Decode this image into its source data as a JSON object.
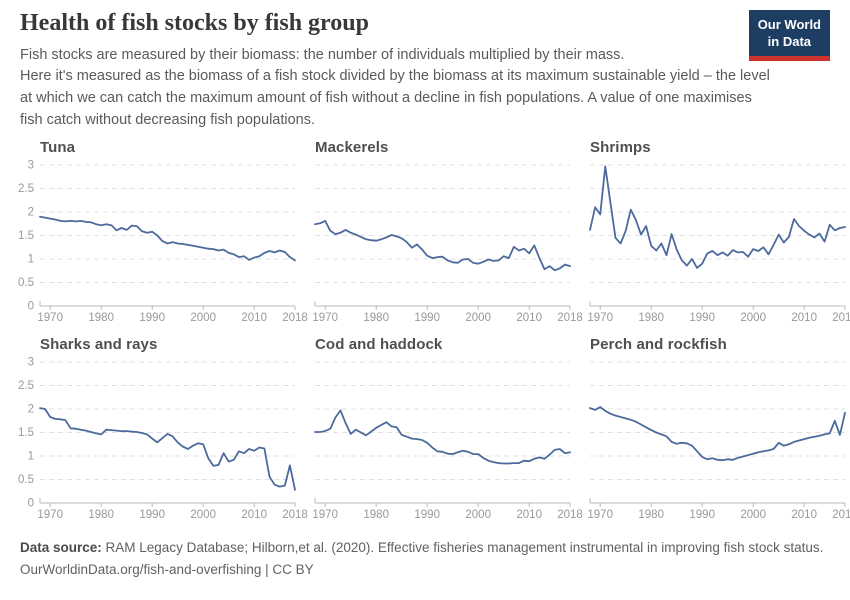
{
  "header": {
    "title": "Health of fish stocks by fish group",
    "logo": {
      "line1": "Our World",
      "line2": "in Data"
    }
  },
  "subtitle": {
    "p1": "Fish stocks are measured by their biomass: the number of individuals multiplied by their mass.",
    "p2": "Here it's measured as the biomass of a fish stock divided by the biomass at its maximum sustainable yield – the level at which we can catch the maximum amount of fish without a decline in fish populations. A value of one maximises fish catch without decreasing fish populations."
  },
  "footer": {
    "source_label": "Data source:",
    "source_text": " RAM Legacy Database; Hilborn,et al. (2020). Effective fisheries management instrumental in improving fish stock status.",
    "url": "OurWorldinData.org/fish-and-overfishing",
    "separator": " | ",
    "license": "CC BY"
  },
  "colors": {
    "line": "#4c6a9c",
    "grid": "#e1e1e1",
    "axis": "#b8b8b8",
    "tick_label": "#999999",
    "panel_title": "#4f4f4f",
    "logo_bg": "#1d3d63",
    "logo_stripe": "#cc332d"
  },
  "chart_data": {
    "type": "line",
    "layout": "small-multiples 2x3, dashed horizontal gridlines, y labels on first column only",
    "ylim": [
      0,
      3
    ],
    "yticks": [
      0,
      0.5,
      1,
      1.5,
      2,
      2.5,
      3
    ],
    "xticks": [
      1970,
      1980,
      1990,
      2000,
      2010,
      2018
    ],
    "x": [
      1968,
      1969,
      1970,
      1971,
      1972,
      1973,
      1974,
      1975,
      1976,
      1977,
      1978,
      1979,
      1980,
      1981,
      1982,
      1983,
      1984,
      1985,
      1986,
      1987,
      1988,
      1989,
      1990,
      1991,
      1992,
      1993,
      1994,
      1995,
      1996,
      1997,
      1998,
      1999,
      2000,
      2001,
      2002,
      2003,
      2004,
      2005,
      2006,
      2007,
      2008,
      2009,
      2010,
      2011,
      2012,
      2013,
      2014,
      2015,
      2016,
      2017,
      2018
    ],
    "panels": [
      {
        "title": "Tuna",
        "values": [
          1.9,
          1.88,
          1.86,
          1.84,
          1.81,
          1.8,
          1.81,
          1.8,
          1.81,
          1.79,
          1.78,
          1.74,
          1.72,
          1.74,
          1.72,
          1.61,
          1.66,
          1.62,
          1.71,
          1.7,
          1.59,
          1.56,
          1.58,
          1.5,
          1.38,
          1.33,
          1.36,
          1.33,
          1.32,
          1.3,
          1.28,
          1.26,
          1.24,
          1.22,
          1.21,
          1.18,
          1.2,
          1.13,
          1.1,
          1.04,
          1.06,
          0.98,
          1.03,
          1.06,
          1.13,
          1.17,
          1.14,
          1.18,
          1.15,
          1.04,
          0.97
        ]
      },
      {
        "title": "Mackerels",
        "values": [
          1.74,
          1.76,
          1.81,
          1.6,
          1.53,
          1.56,
          1.62,
          1.56,
          1.52,
          1.47,
          1.42,
          1.4,
          1.39,
          1.42,
          1.46,
          1.51,
          1.48,
          1.44,
          1.36,
          1.24,
          1.31,
          1.2,
          1.07,
          1.02,
          1.04,
          1.05,
          0.97,
          0.93,
          0.92,
          0.99,
          1.0,
          0.92,
          0.9,
          0.94,
          0.99,
          0.96,
          0.97,
          1.06,
          1.02,
          1.26,
          1.18,
          1.22,
          1.12,
          1.29,
          1.02,
          0.78,
          0.85,
          0.76,
          0.8,
          0.88,
          0.85
        ]
      },
      {
        "title": "Shrimps",
        "values": [
          1.62,
          2.1,
          1.95,
          2.97,
          2.2,
          1.45,
          1.33,
          1.6,
          2.05,
          1.83,
          1.52,
          1.7,
          1.28,
          1.18,
          1.33,
          1.08,
          1.53,
          1.2,
          0.97,
          0.86,
          1.0,
          0.81,
          0.9,
          1.12,
          1.17,
          1.08,
          1.14,
          1.07,
          1.19,
          1.14,
          1.15,
          1.05,
          1.21,
          1.17,
          1.25,
          1.1,
          1.3,
          1.52,
          1.35,
          1.47,
          1.85,
          1.7,
          1.6,
          1.52,
          1.46,
          1.54,
          1.37,
          1.73,
          1.61,
          1.66,
          1.68
        ]
      },
      {
        "title": "Sharks and rays",
        "values": [
          2.02,
          2.0,
          1.83,
          1.79,
          1.78,
          1.76,
          1.59,
          1.58,
          1.56,
          1.54,
          1.51,
          1.48,
          1.46,
          1.56,
          1.55,
          1.54,
          1.53,
          1.53,
          1.52,
          1.51,
          1.49,
          1.46,
          1.37,
          1.29,
          1.38,
          1.47,
          1.42,
          1.29,
          1.2,
          1.15,
          1.22,
          1.27,
          1.25,
          0.95,
          0.79,
          0.81,
          1.06,
          0.88,
          0.92,
          1.1,
          1.06,
          1.15,
          1.11,
          1.18,
          1.16,
          0.56,
          0.39,
          0.35,
          0.37,
          0.8,
          0.28
        ]
      },
      {
        "title": "Cod and haddock",
        "values": [
          1.51,
          1.51,
          1.53,
          1.58,
          1.82,
          1.97,
          1.7,
          1.47,
          1.56,
          1.5,
          1.44,
          1.52,
          1.6,
          1.66,
          1.72,
          1.63,
          1.61,
          1.45,
          1.41,
          1.37,
          1.36,
          1.34,
          1.28,
          1.18,
          1.1,
          1.09,
          1.05,
          1.04,
          1.08,
          1.11,
          1.09,
          1.04,
          1.04,
          0.96,
          0.9,
          0.87,
          0.85,
          0.84,
          0.84,
          0.85,
          0.85,
          0.9,
          0.89,
          0.94,
          0.97,
          0.94,
          1.03,
          1.13,
          1.15,
          1.06,
          1.08
        ]
      },
      {
        "title": "Perch and rockfish",
        "values": [
          2.02,
          1.98,
          2.04,
          1.96,
          1.9,
          1.86,
          1.83,
          1.8,
          1.77,
          1.73,
          1.67,
          1.61,
          1.55,
          1.5,
          1.46,
          1.42,
          1.3,
          1.26,
          1.28,
          1.27,
          1.22,
          1.1,
          0.98,
          0.93,
          0.95,
          0.92,
          0.91,
          0.93,
          0.92,
          0.96,
          0.99,
          1.02,
          1.05,
          1.08,
          1.1,
          1.12,
          1.15,
          1.28,
          1.22,
          1.25,
          1.3,
          1.33,
          1.36,
          1.39,
          1.41,
          1.43,
          1.46,
          1.48,
          1.75,
          1.45,
          1.92
        ]
      }
    ]
  }
}
